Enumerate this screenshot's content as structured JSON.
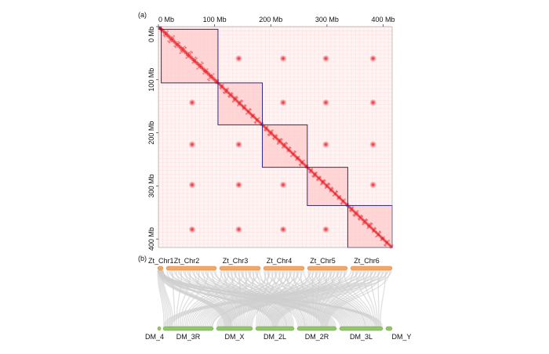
{
  "panel_a": {
    "label": "(a)",
    "top_ticks": [
      "0 Mb",
      "100 Mb",
      "200 Mb",
      "300 Mb",
      "400 Mb"
    ],
    "left_ticks": [
      "0 Mb",
      "100 Mb",
      "200 Mb",
      "300 Mb",
      "400 Mb"
    ],
    "tick_positions_mb": [
      0,
      100,
      200,
      300,
      400
    ],
    "genome_length_mb": 416,
    "chromosomes_mb": [
      {
        "name": "Zt_Chr1",
        "start": 0,
        "end": 5
      },
      {
        "name": "Zt_Chr2",
        "start": 5,
        "end": 106
      },
      {
        "name": "Zt_Chr3",
        "start": 106,
        "end": 185
      },
      {
        "name": "Zt_Chr4",
        "start": 185,
        "end": 265
      },
      {
        "name": "Zt_Chr5",
        "start": 265,
        "end": 337
      },
      {
        "name": "Zt_Chr6",
        "start": 337,
        "end": 416
      }
    ],
    "colors": {
      "contact": "#e8141c",
      "box": "#2e2a8c",
      "background": "#fff4f4"
    }
  },
  "panel_b": {
    "label": "(b)",
    "top_chromosomes": [
      {
        "name": "Zt_Chr1",
        "x1": 201,
        "x2": 208
      },
      {
        "name": "Zt_Chr2",
        "x1": 212,
        "x2": 276
      },
      {
        "name": "Zt_Chr3",
        "x1": 280,
        "x2": 332
      },
      {
        "name": "Zt_Chr4",
        "x1": 336,
        "x2": 388
      },
      {
        "name": "Zt_Chr5",
        "x1": 392,
        "x2": 443
      },
      {
        "name": "Zt_Chr6",
        "x1": 447,
        "x2": 500
      }
    ],
    "bottom_chromosomes": [
      {
        "name": "DM_4",
        "x1": 201,
        "x2": 205
      },
      {
        "name": "DM_3R",
        "x1": 208,
        "x2": 272
      },
      {
        "name": "DM_X",
        "x1": 276,
        "x2": 322
      },
      {
        "name": "DM_2L",
        "x1": 326,
        "x2": 375
      },
      {
        "name": "DM_2R",
        "x1": 379,
        "x2": 429
      },
      {
        "name": "DM_3L",
        "x1": 433,
        "x2": 488
      },
      {
        "name": "DM_Y",
        "x1": 492,
        "x2": 500
      }
    ],
    "colors": {
      "top": "#f0a868",
      "bottom": "#8fc865",
      "links": "#cfcfcf"
    }
  }
}
